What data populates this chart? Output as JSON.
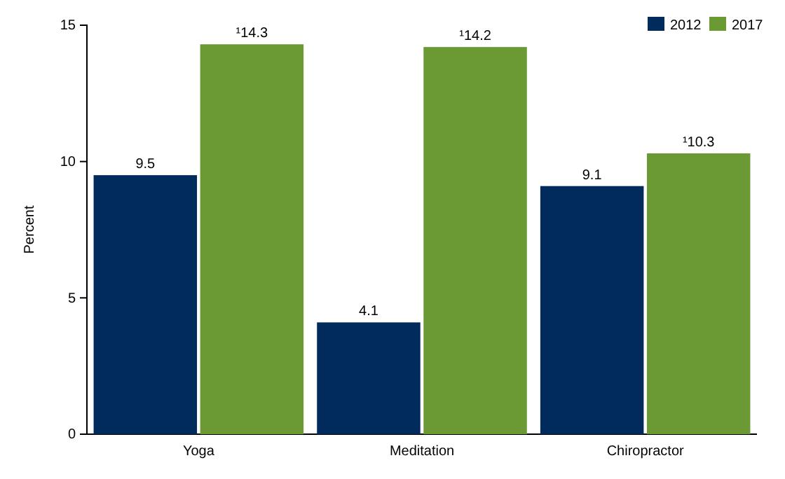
{
  "chart_data": {
    "type": "bar",
    "ylabel": "Percent",
    "categories": [
      "Yoga",
      "Meditation",
      "Chiropractor"
    ],
    "series": [
      {
        "name": "2012",
        "color": "#002b5c",
        "values": [
          9.5,
          4.1,
          9.1
        ],
        "value_labels": [
          "9.5",
          "4.1",
          "9.1"
        ]
      },
      {
        "name": "2017",
        "color": "#6b9a35",
        "values": [
          14.3,
          14.2,
          10.3
        ],
        "value_labels": [
          "¹14.3",
          "¹14.2",
          "¹10.3"
        ]
      }
    ],
    "ylim": [
      0,
      15
    ],
    "yticks": [
      0,
      5,
      10,
      15
    ],
    "grid": false,
    "legend": "top right"
  }
}
